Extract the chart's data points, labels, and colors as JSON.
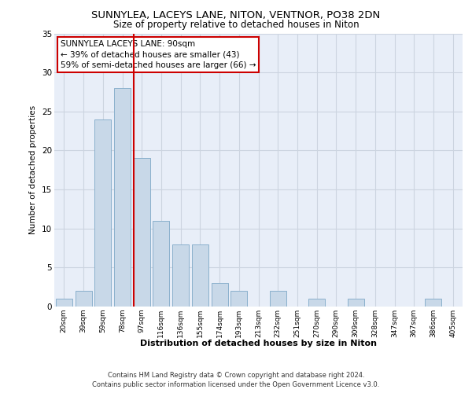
{
  "title1": "SUNNYLEA, LACEYS LANE, NITON, VENTNOR, PO38 2DN",
  "title2": "Size of property relative to detached houses in Niton",
  "xlabel": "Distribution of detached houses by size in Niton",
  "ylabel": "Number of detached properties",
  "categories": [
    "20sqm",
    "39sqm",
    "59sqm",
    "78sqm",
    "97sqm",
    "116sqm",
    "136sqm",
    "155sqm",
    "174sqm",
    "193sqm",
    "213sqm",
    "232sqm",
    "251sqm",
    "270sqm",
    "290sqm",
    "309sqm",
    "328sqm",
    "347sqm",
    "367sqm",
    "386sqm",
    "405sqm"
  ],
  "values": [
    1,
    2,
    24,
    28,
    19,
    11,
    8,
    8,
    3,
    2,
    0,
    2,
    0,
    1,
    0,
    1,
    0,
    0,
    0,
    1,
    0
  ],
  "bar_color": "#c8d8e8",
  "bar_edge_color": "#8ab0cc",
  "vline_color": "#cc0000",
  "vline_pos": 3.575,
  "annotation_text": "SUNNYLEA LACEYS LANE: 90sqm\n← 39% of detached houses are smaller (43)\n59% of semi-detached houses are larger (66) →",
  "annotation_box_color": "#ffffff",
  "annotation_box_edge": "#cc0000",
  "ylim": [
    0,
    35
  ],
  "yticks": [
    0,
    5,
    10,
    15,
    20,
    25,
    30,
    35
  ],
  "grid_color": "#ccd4e0",
  "background_color": "#e8eef8",
  "footer": "Contains HM Land Registry data © Crown copyright and database right 2024.\nContains public sector information licensed under the Open Government Licence v3.0."
}
